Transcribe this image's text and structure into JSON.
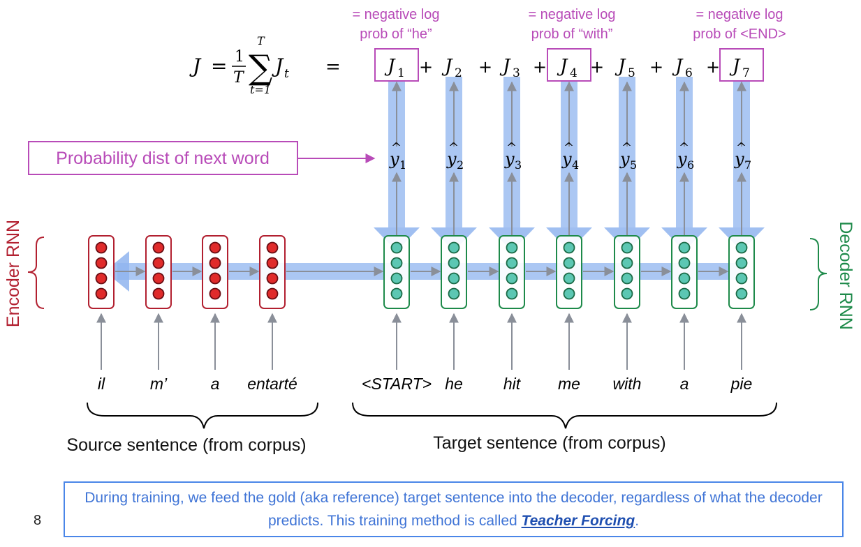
{
  "formula": {
    "lhs": "J",
    "eq1": "=",
    "frac_num": "1",
    "frac_den": "T",
    "sum_top": "T",
    "sum_bottom": "t=1",
    "sum_term": "J",
    "sum_term_sub": "t",
    "eq2": "="
  },
  "loss_terms": [
    {
      "base": "J",
      "sub": "1",
      "boxed": true
    },
    {
      "base": "J",
      "sub": "2",
      "boxed": false
    },
    {
      "base": "J",
      "sub": "3",
      "boxed": false
    },
    {
      "base": "J",
      "sub": "4",
      "boxed": true
    },
    {
      "base": "J",
      "sub": "5",
      "boxed": false
    },
    {
      "base": "J",
      "sub": "6",
      "boxed": false
    },
    {
      "base": "J",
      "sub": "7",
      "boxed": true
    }
  ],
  "plus": "+",
  "annotations": [
    {
      "line1": "= negative log",
      "line2": "prob of “he”"
    },
    {
      "line1": "= negative log",
      "line2": "prob of “with”"
    },
    {
      "line1": "= negative log",
      "line2": "prob of <END>"
    }
  ],
  "prob_label": "Probability dist of next word",
  "y_hats": [
    "1",
    "2",
    "3",
    "4",
    "5",
    "6",
    "7"
  ],
  "y_hat_base": "y",
  "encoder_label": "Encoder RNN",
  "decoder_label": "Decoder RNN",
  "source_words": [
    "il",
    "m’",
    "a",
    "entarté"
  ],
  "target_words": [
    "<START>",
    "he",
    "hit",
    "me",
    "with",
    "a",
    "pie"
  ],
  "source_caption": "Source sentence (from corpus)",
  "target_caption": "Target sentence (from corpus)",
  "note": {
    "text_before": "During training, we feed the gold (aka reference) target sentence into the decoder, regardless of what the decoder predicts. This training method is called ",
    "term": "Teacher Forcing",
    "text_after": "."
  },
  "page_number": "8",
  "colors": {
    "encoder": "#b22030",
    "decoder": "#1e8a4a",
    "annotation": "#b84bb8",
    "highlight": "#8fb4ef",
    "note_border": "#4a86e8",
    "arrow": "#8a8f99"
  }
}
